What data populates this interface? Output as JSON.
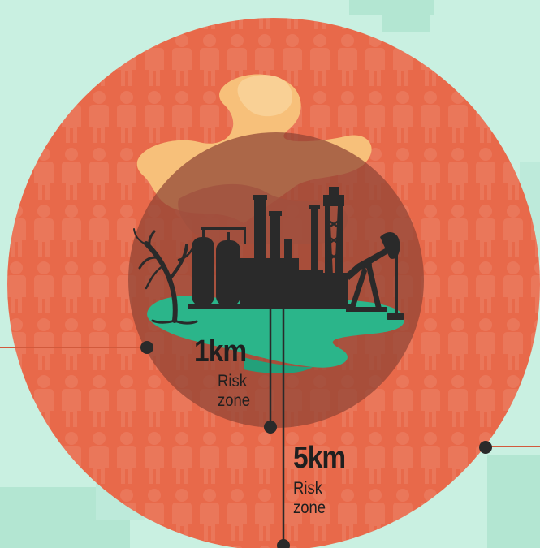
{
  "zones": [
    {
      "value": "1km",
      "caption_line1": "Risk",
      "caption_line2": "zone"
    },
    {
      "value": "5km",
      "caption_line1": "Risk",
      "caption_line2": "zone"
    }
  ],
  "colors": {
    "background": "#c9f0e1",
    "outer_zone": "#e8694a",
    "inner_zone": "#8f4435",
    "smoke": "#f7c07a",
    "oil_spill": "#2bb58a",
    "factory": "#2a2a2a",
    "leader_line": "#d25a3c"
  },
  "icons": [
    "person-icon",
    "factory-icon",
    "oil-pump-icon",
    "dead-tree-icon",
    "smoke-plume-icon",
    "oil-spill-icon"
  ]
}
